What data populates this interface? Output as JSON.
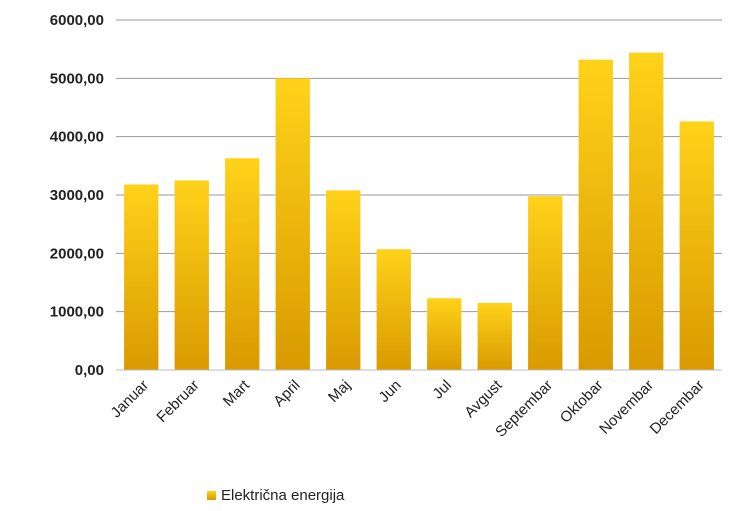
{
  "chart_data": {
    "type": "bar",
    "categories": [
      "Januar",
      "Februar",
      "Mart",
      "April",
      "Maj",
      "Jun",
      "Jul",
      "Avgust",
      "Septembar",
      "Oktobar",
      "Novembar",
      "Decembar"
    ],
    "series": [
      {
        "name": "Električna energija",
        "values": [
          3180,
          3250,
          3630,
          5000,
          3080,
          2070,
          1230,
          1150,
          2980,
          5320,
          5440,
          4260
        ]
      }
    ],
    "ylim": [
      0,
      6000
    ],
    "yticks": [
      "0,00",
      "1000,00",
      "2000,00",
      "3000,00",
      "4000,00",
      "5000,00",
      "6000,00"
    ],
    "grid": true,
    "legend_position": "bottom",
    "bar_color_top": "#ffd21a",
    "bar_color_bottom": "#d99a00",
    "title": "",
    "xlabel": "",
    "ylabel": ""
  }
}
